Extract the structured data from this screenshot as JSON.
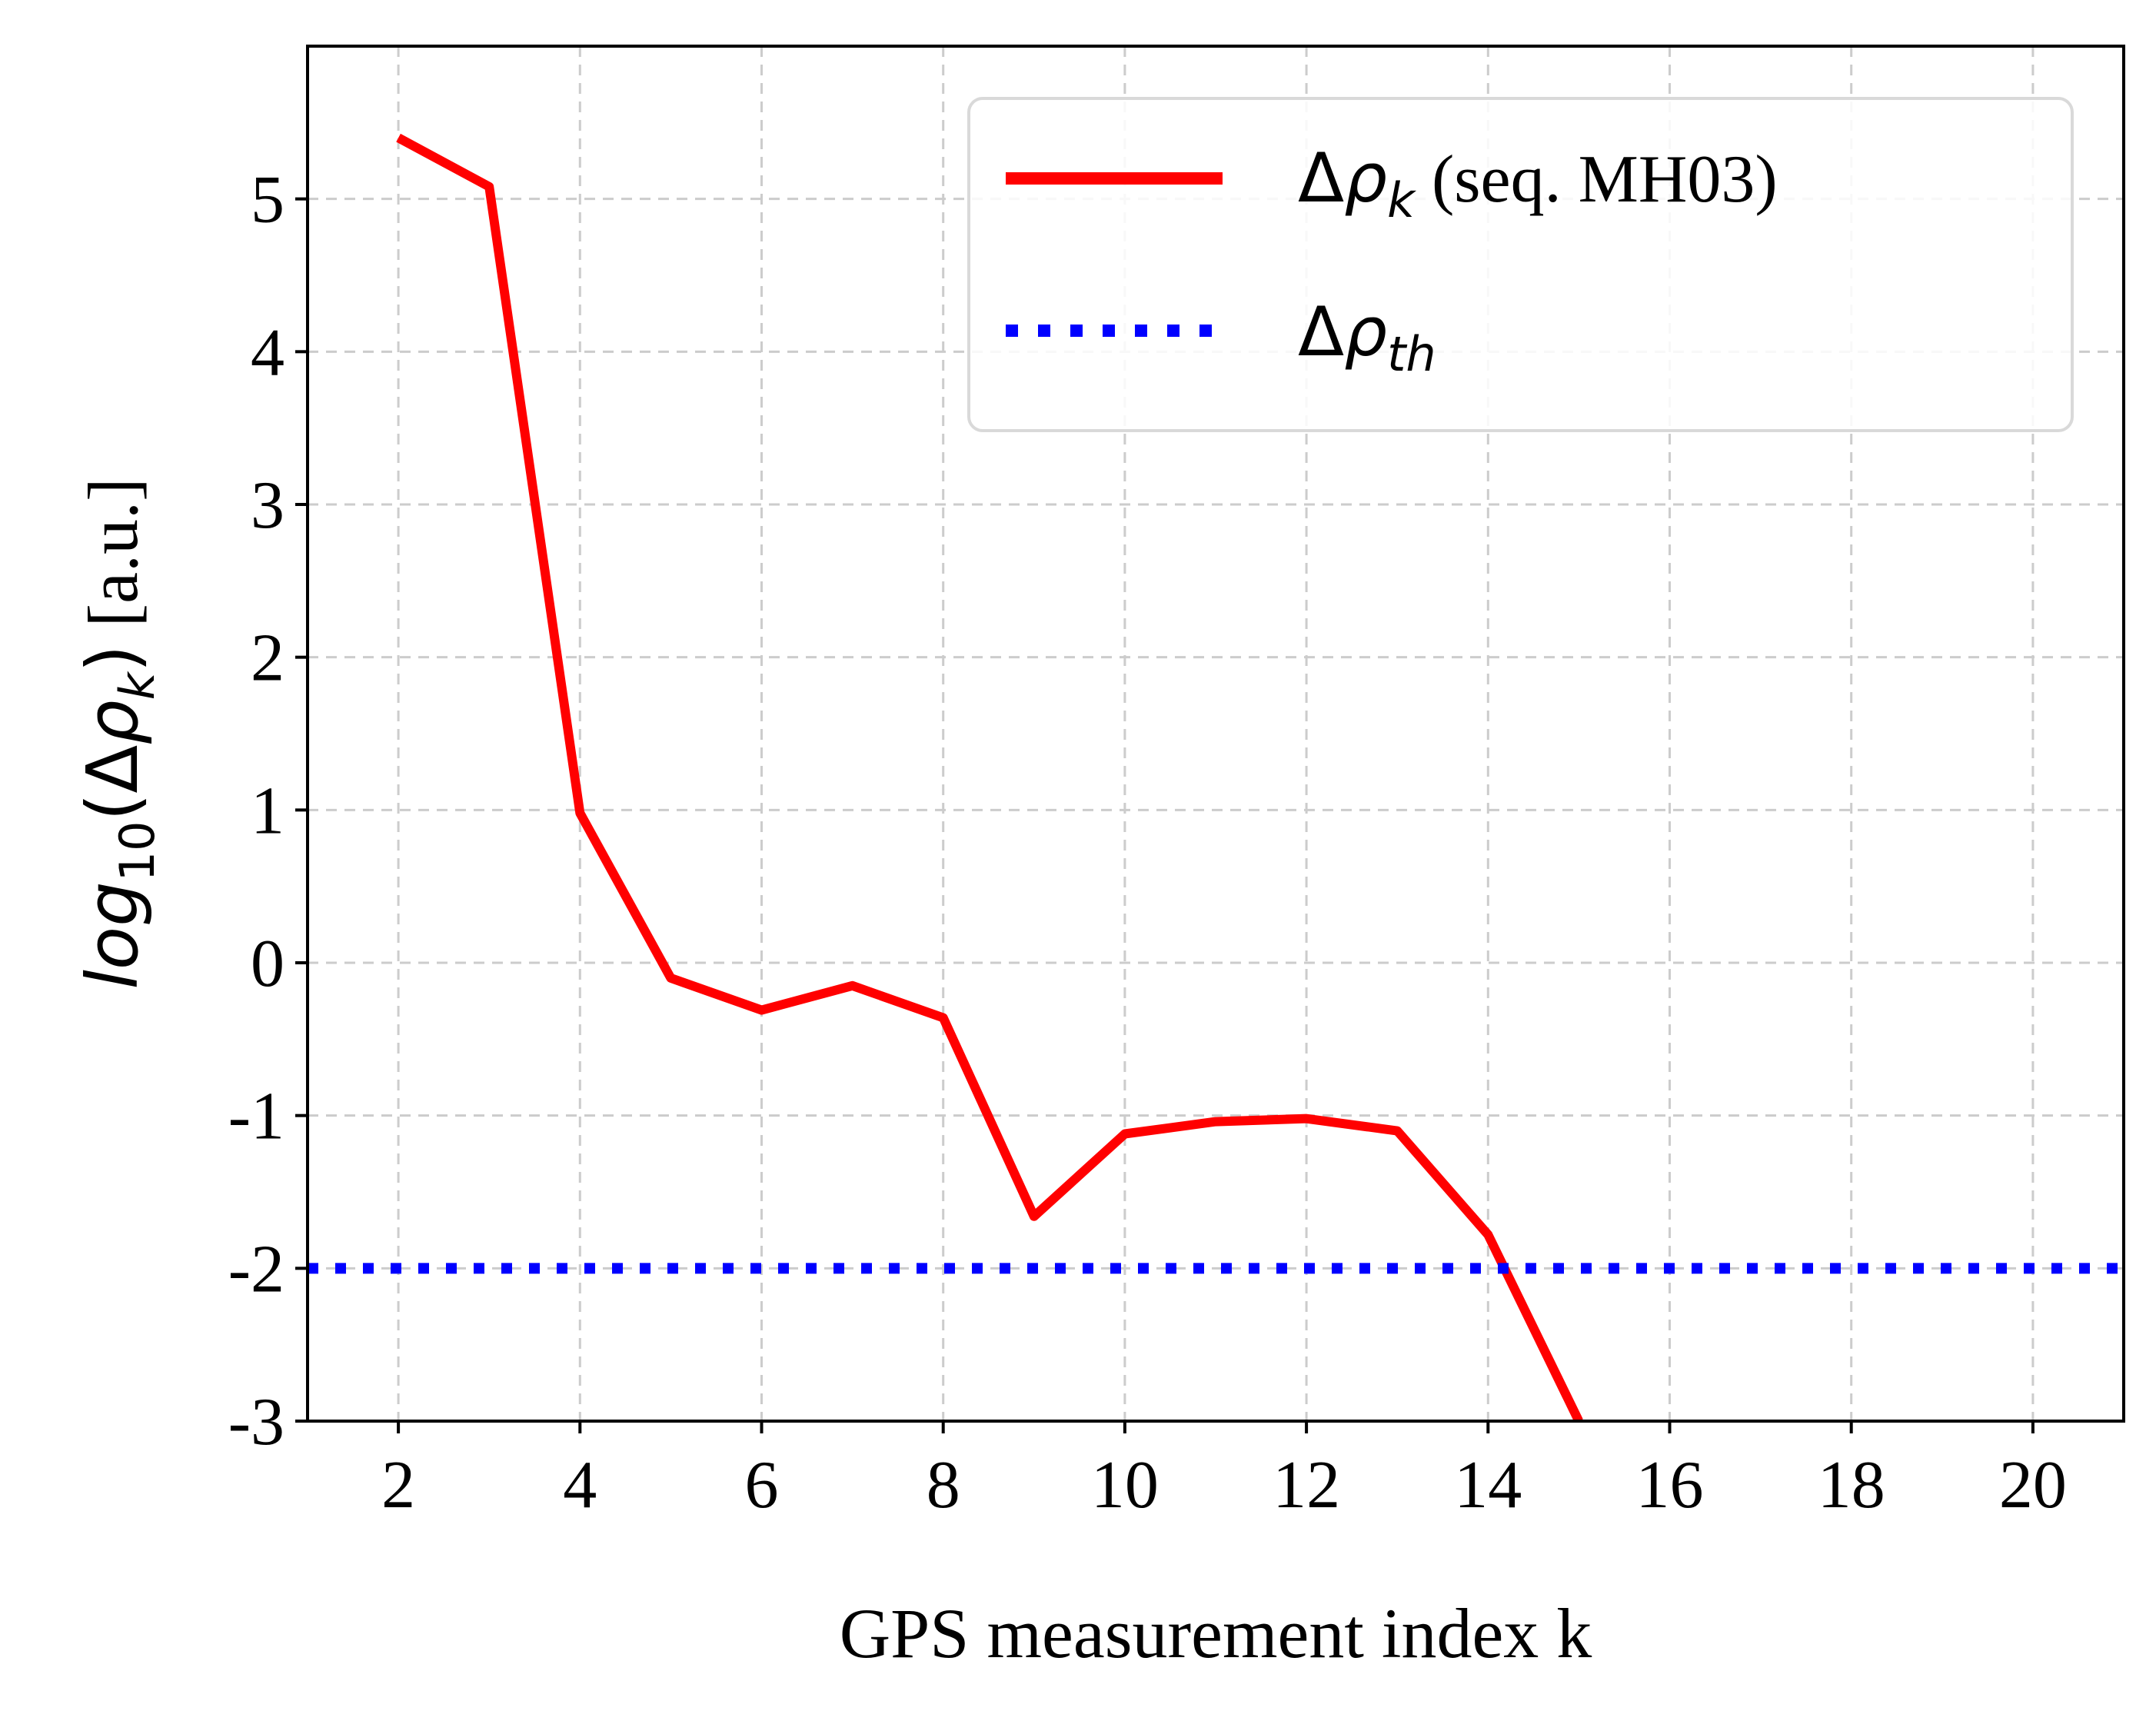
{
  "chart_data": {
    "type": "line",
    "xlabel": "GPS measurement index k",
    "ylabel": {
      "func": "log",
      "sub": "10",
      "paren_open": "(",
      "delta": "Δ",
      "rho": "ρ",
      "rho_sub": "k",
      "paren_close": ")",
      "unit": " [a.u.]"
    },
    "xlim": [
      1,
      21
    ],
    "ylim": [
      -3,
      6
    ],
    "x_ticks": [
      2,
      4,
      6,
      8,
      10,
      12,
      14,
      16,
      18,
      20
    ],
    "x_tick_labels": [
      "2",
      "4",
      "6",
      "8",
      "10",
      "12",
      "14",
      "16",
      "18",
      "20"
    ],
    "y_ticks": [
      -3,
      -2,
      -1,
      0,
      1,
      2,
      3,
      4,
      5
    ],
    "y_tick_labels": [
      "-3",
      "-2",
      "-1",
      "0",
      "1",
      "2",
      "3",
      "4",
      "5"
    ],
    "grid": true,
    "legend_position": "top-right",
    "series": [
      {
        "name": "Δρk (seq. MH03)",
        "legend": {
          "delta": "Δ",
          "rho": "ρ",
          "sub": "k",
          "suffix": " (seq. MH03)"
        },
        "style": "solid",
        "color": "#ff0000",
        "x": [
          2,
          3,
          4,
          5,
          6,
          7,
          8,
          9,
          10,
          11,
          12,
          13,
          14,
          15
        ],
        "y": [
          5.4,
          5.08,
          0.98,
          -0.1,
          -0.31,
          -0.15,
          -0.36,
          -1.66,
          -1.12,
          -1.04,
          -1.02,
          -1.1,
          -1.78,
          -3.0
        ]
      },
      {
        "name": "Δρth",
        "legend": {
          "delta": "Δ",
          "rho": "ρ",
          "sub": "th",
          "suffix": ""
        },
        "style": "dotted",
        "color": "#0000ff",
        "x": [
          1,
          21
        ],
        "y": [
          -2,
          -2
        ]
      }
    ]
  }
}
